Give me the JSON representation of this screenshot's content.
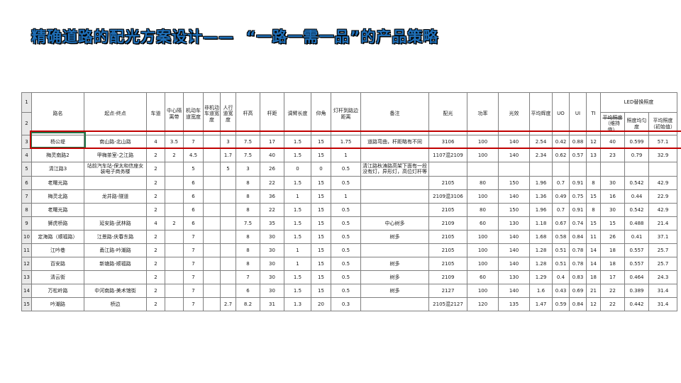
{
  "title": "精确道路的配光方案设计——  “一路一需一品”的产品策略",
  "table": {
    "gutter_header": [
      "1",
      "2"
    ],
    "headers": [
      "路名",
      "起点-终点",
      "车道",
      "中心隔离带",
      "机动车道宽度",
      "非机动车道宽度",
      "人行道宽度",
      "杆高",
      "杆距",
      "调臂长度",
      "仰角",
      "灯杆到路边距离",
      "备注",
      "配光",
      "功率",
      "光效",
      "平均辉度",
      "UO",
      "UI",
      "TI"
    ],
    "led_group": {
      "label": "LED替换照度",
      "sub1_struck": "平均照度",
      "sub1_rest": "（维持值）",
      "sub2": "照度均匀度",
      "sub3": "平均照度（初始值）"
    },
    "rows": [
      {
        "num": "3",
        "highlight": true,
        "cells": [
          "杨公堤",
          "南山路-北山路",
          "4",
          "3.5",
          "7",
          "",
          "3",
          "7.5",
          "17",
          "1.5",
          "15",
          "1.75",
          "道路弯曲，杆距略有不同",
          "3106",
          "100",
          "140",
          "2.54",
          "0.42",
          "0.88",
          "12",
          "40",
          "0.599",
          "57.1"
        ]
      },
      {
        "num": "4",
        "highlight": false,
        "cells": [
          "梅灵南路2",
          "甲梅茶室-之江路",
          "2",
          "2",
          "4.5",
          "",
          "1.7",
          "7.5",
          "40",
          "1.5",
          "15",
          "1",
          "",
          "1107混2109",
          "100",
          "140",
          "2.34",
          "0.62",
          "0.57",
          "13",
          "23",
          "0.79",
          "32.9"
        ]
      },
      {
        "num": "5",
        "highlight": false,
        "cells": [
          "清江路3",
          "站前汽车站-保太和信座女装电子商务楼",
          "2",
          "",
          "5",
          "",
          "5",
          "3",
          "26",
          "0",
          "0",
          "0.5",
          "清江路秋涛路高架下面有一段没有灯，异形灯，高位灯杆等",
          "",
          "",
          "",
          "",
          "",
          "",
          "",
          "",
          "",
          ""
        ]
      },
      {
        "num": "6",
        "highlight": false,
        "cells": [
          "老曙光路",
          "",
          "2",
          "",
          "6",
          "",
          "",
          "8",
          "22",
          "1.5",
          "15",
          "0.5",
          "",
          "2105",
          "80",
          "150",
          "1.96",
          "0.7",
          "0.91",
          "8",
          "30",
          "0.542",
          "42.9"
        ]
      },
      {
        "num": "7",
        "highlight": false,
        "cells": [
          "梅灵北路",
          "龙井路-隧道",
          "2",
          "",
          "6",
          "",
          "",
          "8",
          "36",
          "1",
          "15",
          "1",
          "",
          "2109混3106",
          "100",
          "140",
          "1.36",
          "0.49",
          "0.75",
          "15",
          "16",
          "0.44",
          "22.9"
        ]
      },
      {
        "num": "8",
        "highlight": false,
        "cells": [
          "老曙光路",
          "",
          "2",
          "",
          "6",
          "",
          "",
          "8",
          "22",
          "1.5",
          "15",
          "0.5",
          "",
          "2105",
          "80",
          "150",
          "1.96",
          "0.7",
          "0.91",
          "8",
          "30",
          "0.542",
          "42.9"
        ]
      },
      {
        "num": "9",
        "highlight": false,
        "cells": [
          "狮虎桥路",
          "延安路-武林路",
          "4",
          "2",
          "6",
          "",
          "",
          "7.5",
          "35",
          "1.5",
          "15",
          "0.5",
          "中心树多",
          "2109",
          "60",
          "130",
          "1.18",
          "0.67",
          "0.74",
          "15",
          "15",
          "0.488",
          "21.4"
        ]
      },
      {
        "num": "10",
        "highlight": false,
        "cells": [
          "定海路（顺福路）",
          "江景路-庆春东路",
          "2",
          "",
          "7",
          "",
          "",
          "8",
          "30",
          "1.5",
          "15",
          "0.5",
          "树多",
          "2105",
          "100",
          "140",
          "1.68",
          "0.58",
          "0.84",
          "11",
          "26",
          "0.41",
          "37.1"
        ]
      },
      {
        "num": "11",
        "highlight": false,
        "cells": [
          "江吟巷",
          "甬江路-吟潮路",
          "2",
          "",
          "7",
          "",
          "",
          "8",
          "30",
          "1",
          "15",
          "0.5",
          "",
          "2105",
          "100",
          "140",
          "1.28",
          "0.51",
          "0.78",
          "14",
          "18",
          "0.557",
          "25.7"
        ]
      },
      {
        "num": "12",
        "highlight": false,
        "cells": [
          "百安路",
          "新塘路-顺福路",
          "2",
          "",
          "7",
          "",
          "",
          "8",
          "30",
          "1",
          "15",
          "0.5",
          "树多",
          "2105",
          "100",
          "140",
          "1.28",
          "0.51",
          "0.78",
          "14",
          "18",
          "0.557",
          "25.7"
        ]
      },
      {
        "num": "13",
        "highlight": false,
        "cells": [
          "清云街",
          "",
          "2",
          "",
          "7",
          "",
          "",
          "7",
          "30",
          "1.5",
          "15",
          "0.5",
          "树多",
          "2109",
          "60",
          "130",
          "1.29",
          "0.4",
          "0.83",
          "18",
          "17",
          "0.464",
          "24.3"
        ]
      },
      {
        "num": "14",
        "highlight": false,
        "cells": [
          "万松岭路",
          "中河南路-美术馆街",
          "2",
          "",
          "7",
          "",
          "",
          "6",
          "30",
          "1.5",
          "15",
          "0.5",
          "树多",
          "2127",
          "100",
          "140",
          "1.6",
          "0.43",
          "0.69",
          "21",
          "22",
          "0.389",
          "31.4"
        ]
      },
      {
        "num": "15",
        "highlight": false,
        "cells": [
          "吟潮路",
          "桥边",
          "2",
          "",
          "7",
          "",
          "2.7",
          "8.2",
          "31",
          "1.3",
          "20",
          "0.3",
          "",
          "2105混2127",
          "120",
          "135",
          "1.47",
          "0.59",
          "0.84",
          "12",
          "22",
          "0.442",
          "31.4"
        ]
      }
    ]
  }
}
